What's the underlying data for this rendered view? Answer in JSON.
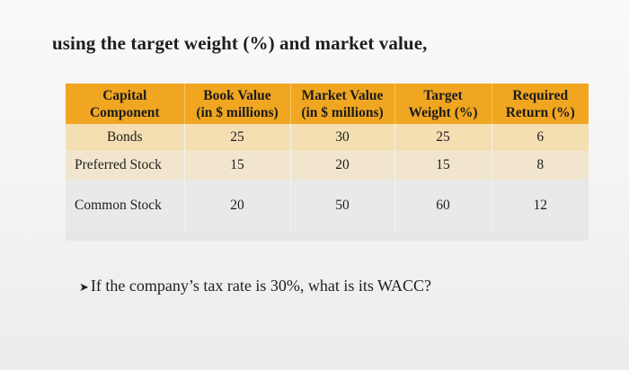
{
  "heading": "using the target weight (%) and market value,",
  "table": {
    "headers": [
      [
        "Capital",
        "Component"
      ],
      [
        "Book Value",
        "(in $ millions)"
      ],
      [
        "Market Value",
        "(in $ millions)"
      ],
      [
        "Target",
        "Weight (%)"
      ],
      [
        "Required",
        "Return (%)"
      ]
    ],
    "rows": [
      [
        "Bonds",
        "25",
        "30",
        "25",
        "6"
      ],
      [
        "Preferred Stock",
        "15",
        "20",
        "15",
        "8"
      ],
      [
        "Common Stock",
        "20",
        "50",
        "60",
        "12"
      ]
    ]
  },
  "question": {
    "bullet": "➤",
    "text": "If the company’s tax rate is 30%, what is its WACC?"
  },
  "colors": {
    "header_bg": "#f0a620",
    "row1_bg": "#f4dfb3",
    "row2_bg": "#f1e6cd",
    "row3_bg": "#e9e9e9"
  }
}
